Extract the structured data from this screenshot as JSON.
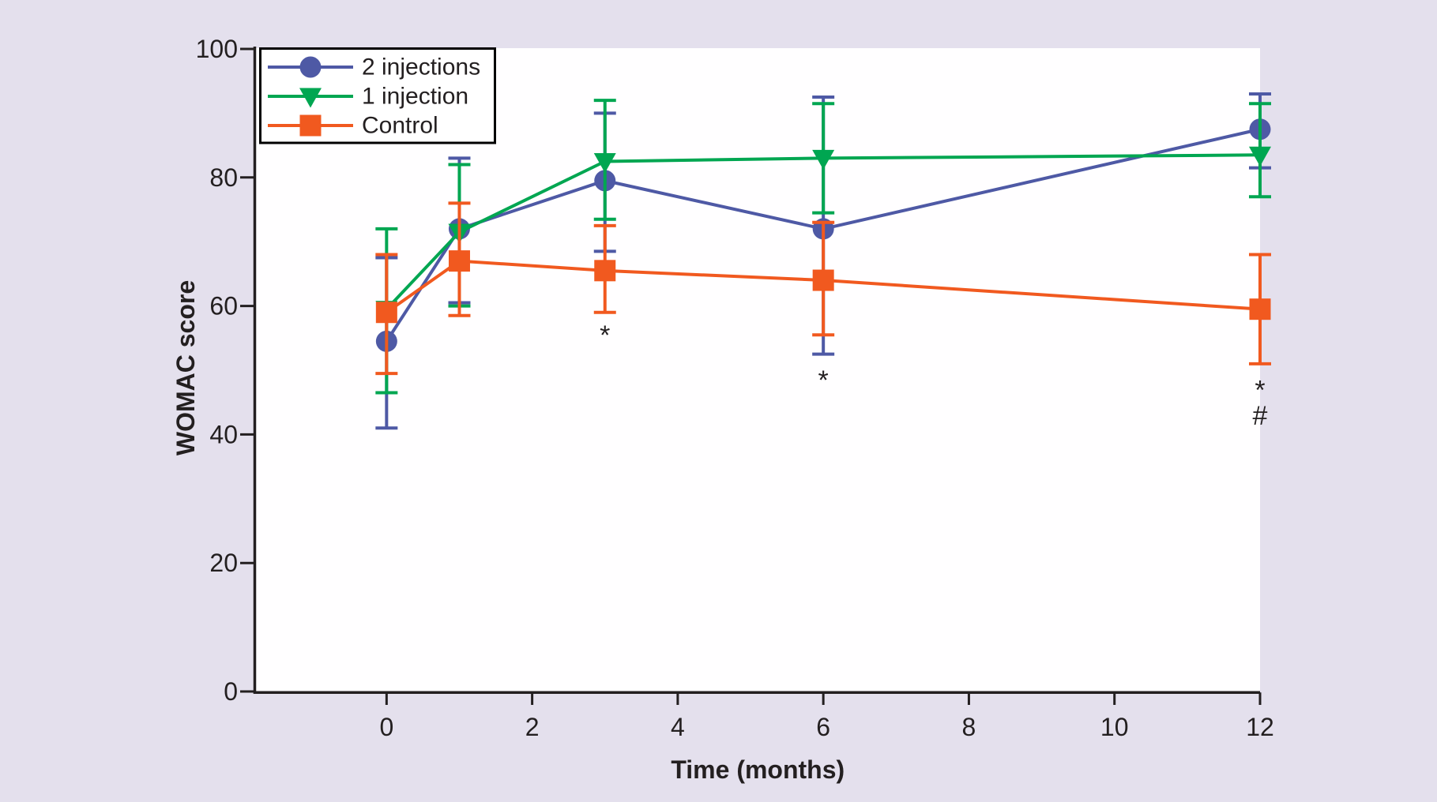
{
  "figure": {
    "background": "#E4E0ED",
    "plot_background": "#FFFEFF",
    "axis_color": "#231F20",
    "text_color": "#231F20"
  },
  "chart_data": {
    "type": "line",
    "title": "",
    "xlabel": "Time (months)",
    "ylabel": "WOMAC score",
    "xlim": [
      -1.8,
      12
    ],
    "ylim": [
      0,
      100
    ],
    "xticks": [
      0,
      2,
      4,
      6,
      8,
      10,
      12
    ],
    "yticks": [
      0,
      20,
      40,
      60,
      80,
      100
    ],
    "grid": false,
    "legend_position": "top-left",
    "error_bars": true,
    "x": [
      0,
      1,
      3,
      6,
      12
    ],
    "series": [
      {
        "name": "2 injections",
        "color": "#4E59A5",
        "marker": "circle",
        "values": [
          54.5,
          72,
          79.5,
          72,
          87.5
        ],
        "err_low": [
          41,
          60.5,
          68.5,
          52.5,
          81.5
        ],
        "err_high": [
          67.5,
          83,
          90,
          92.5,
          93
        ]
      },
      {
        "name": "1 injection",
        "color": "#00A651",
        "marker": "triangle-down",
        "values": [
          59.5,
          71.5,
          82.5,
          83,
          83.5
        ],
        "err_low": [
          46.5,
          60,
          73.5,
          74.5,
          77
        ],
        "err_high": [
          72,
          82,
          92,
          91.5,
          91.5
        ]
      },
      {
        "name": "Control",
        "color": "#F1591F",
        "marker": "square",
        "values": [
          59,
          67,
          65.5,
          64,
          59.5
        ],
        "err_low": [
          49.5,
          58.5,
          59,
          55.5,
          51
        ],
        "err_high": [
          68,
          76,
          72.5,
          73,
          68
        ]
      }
    ],
    "annotations": [
      {
        "text": "*",
        "x": 3,
        "y": 56.5
      },
      {
        "text": "*",
        "x": 6,
        "y": 49.5
      },
      {
        "text": "*",
        "x": 12,
        "y": 48
      },
      {
        "text": "#",
        "x": 12,
        "y": 43
      }
    ]
  }
}
